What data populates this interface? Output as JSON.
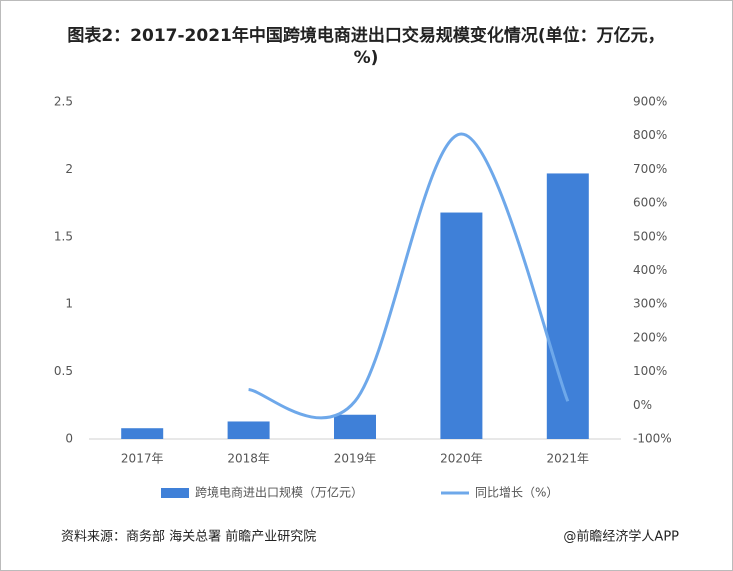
{
  "chart_data": {
    "type": "bar",
    "title": "图表2：2017-2021年中国跨境电商进出口交易规模变化情况(单位：万亿元，%)",
    "categories": [
      "2017年",
      "2018年",
      "2019年",
      "2020年",
      "2021年"
    ],
    "series": [
      {
        "name": "跨境电商进出口规模（万亿元）",
        "color": "#3f80d8",
        "type": "bar",
        "values": [
          0.08,
          0.13,
          0.18,
          1.68,
          1.97
        ]
      },
      {
        "name": "同比增长（%）",
        "color": "#6ea8ea",
        "type": "line",
        "axis": "y2",
        "values": [
          null,
          47,
          12,
          805,
          12
        ]
      }
    ],
    "ylim": [
      0,
      2.5
    ],
    "yticks": [
      0,
      0.5,
      1,
      1.5,
      2,
      2.5
    ],
    "y2lim": [
      -100,
      900
    ],
    "y2ticks": [
      {
        "value": -100,
        "label": "-100%"
      },
      {
        "value": 0,
        "label": "0%"
      },
      {
        "value": 100,
        "label": "100%"
      },
      {
        "value": 200,
        "label": "200%"
      },
      {
        "value": 300,
        "label": "300%"
      },
      {
        "value": 400,
        "label": "400%"
      },
      {
        "value": 500,
        "label": "500%"
      },
      {
        "value": 600,
        "label": "600%"
      },
      {
        "value": 700,
        "label": "700%"
      },
      {
        "value": 800,
        "label": "800%"
      },
      {
        "value": 900,
        "label": "900%"
      }
    ],
    "grid": false,
    "source": "资料来源：商务部 海关总署 前瞻产业研究院",
    "credit": "@前瞻经济学人APP"
  }
}
